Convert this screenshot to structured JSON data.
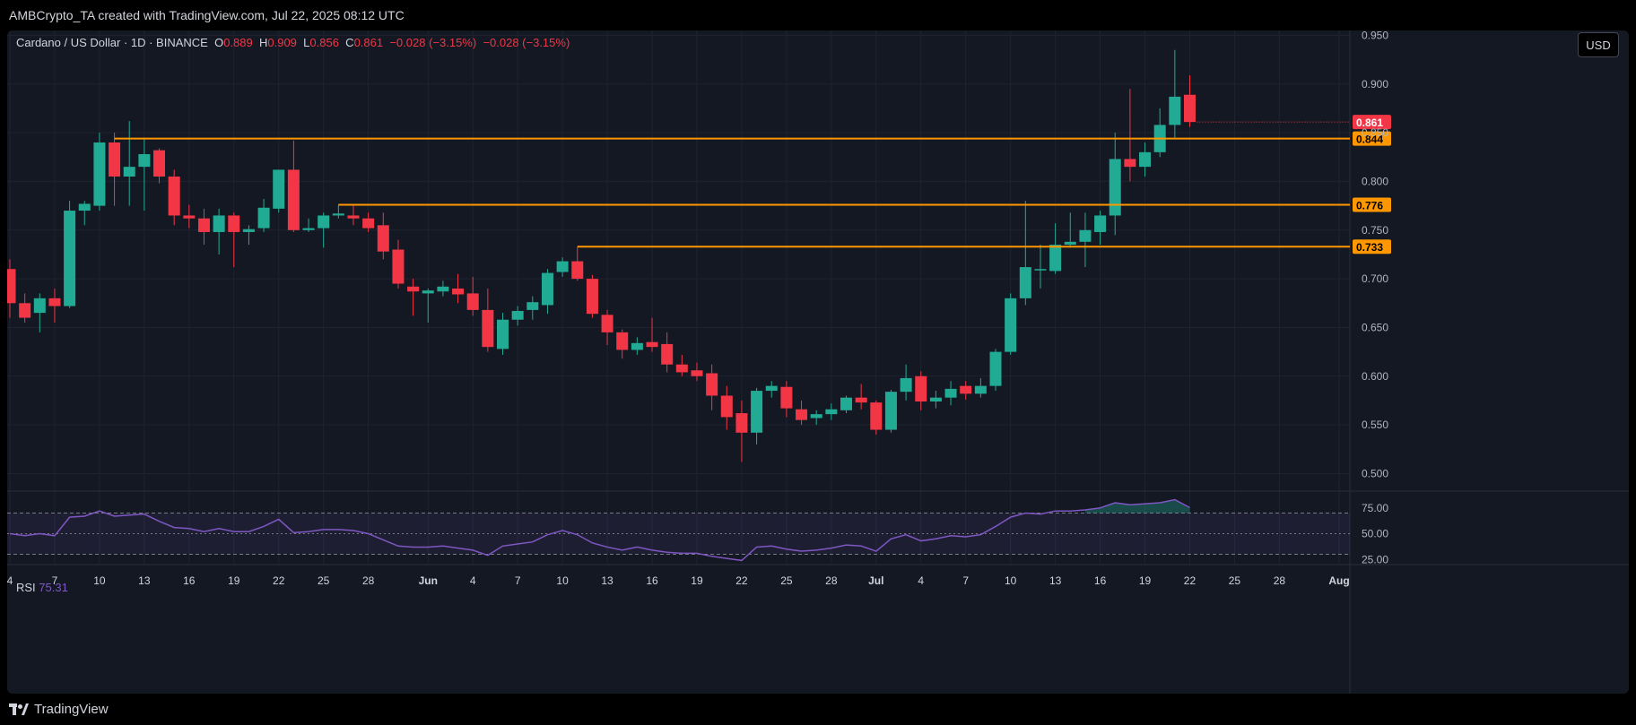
{
  "header": {
    "attribution": "AMBCrypto_TA created with TradingView.com, Jul 22, 2025 08:12 UTC"
  },
  "legend": {
    "symbol": "Cardano / US Dollar · 1D · BINANCE",
    "open_label": "O",
    "open": "0.889",
    "high_label": "H",
    "high": "0.909",
    "low_label": "L",
    "low": "0.856",
    "close_label": "C",
    "close": "0.861",
    "change": "−0.028 (−3.15%)",
    "change2": "−0.028 (−3.15%)"
  },
  "currency_button": "USD",
  "rsi_legend": {
    "label": "RSI",
    "value": "75.31"
  },
  "footer": {
    "brand": "TradingView"
  },
  "colors": {
    "up": "#22ab94",
    "down": "#f23645",
    "level": "#ff9800",
    "rsi": "#7e57c2",
    "background": "#141823"
  },
  "chart_data": {
    "type": "candlestick",
    "price_axis": {
      "range": [
        0.482,
        0.955
      ],
      "ticks": [
        "0.950",
        "0.900",
        "0.850",
        "0.800",
        "0.750",
        "0.700",
        "0.650",
        "0.600",
        "0.550",
        "0.500"
      ]
    },
    "time_axis": {
      "first_day": 4,
      "last_day": 93,
      "ticks": [
        {
          "d": 4,
          "label": "4"
        },
        {
          "d": 7,
          "label": "7"
        },
        {
          "d": 10,
          "label": "10"
        },
        {
          "d": 13,
          "label": "13"
        },
        {
          "d": 16,
          "label": "16"
        },
        {
          "d": 19,
          "label": "19"
        },
        {
          "d": 22,
          "label": "22"
        },
        {
          "d": 25,
          "label": "25"
        },
        {
          "d": 28,
          "label": "28"
        },
        {
          "d": 32,
          "label": "Jun"
        },
        {
          "d": 35,
          "label": "4"
        },
        {
          "d": 38,
          "label": "7"
        },
        {
          "d": 41,
          "label": "10"
        },
        {
          "d": 44,
          "label": "13"
        },
        {
          "d": 47,
          "label": "16"
        },
        {
          "d": 50,
          "label": "19"
        },
        {
          "d": 53,
          "label": "22"
        },
        {
          "d": 56,
          "label": "25"
        },
        {
          "d": 59,
          "label": "28"
        },
        {
          "d": 62,
          "label": "Jul"
        },
        {
          "d": 65,
          "label": "4"
        },
        {
          "d": 68,
          "label": "7"
        },
        {
          "d": 71,
          "label": "10"
        },
        {
          "d": 74,
          "label": "13"
        },
        {
          "d": 77,
          "label": "16"
        },
        {
          "d": 80,
          "label": "19"
        },
        {
          "d": 83,
          "label": "22"
        },
        {
          "d": 86,
          "label": "25"
        },
        {
          "d": 89,
          "label": "28"
        },
        {
          "d": 93,
          "label": "Aug"
        }
      ]
    },
    "last_price_label": "0.861",
    "levels": [
      {
        "value": 0.844,
        "label": "0.844",
        "from_day": 11
      },
      {
        "value": 0.776,
        "label": "0.776",
        "from_day": 26
      },
      {
        "value": 0.733,
        "label": "0.733",
        "from_day": 42
      }
    ],
    "candles": [
      [
        4,
        0.71,
        0.72,
        0.66,
        0.675
      ],
      [
        5,
        0.675,
        0.685,
        0.655,
        0.66
      ],
      [
        6,
        0.665,
        0.685,
        0.645,
        0.68
      ],
      [
        7,
        0.68,
        0.69,
        0.655,
        0.672
      ],
      [
        8,
        0.672,
        0.78,
        0.67,
        0.77
      ],
      [
        9,
        0.77,
        0.78,
        0.755,
        0.777
      ],
      [
        10,
        0.775,
        0.85,
        0.77,
        0.84
      ],
      [
        11,
        0.84,
        0.85,
        0.775,
        0.805
      ],
      [
        12,
        0.805,
        0.862,
        0.775,
        0.815
      ],
      [
        13,
        0.815,
        0.845,
        0.77,
        0.828
      ],
      [
        14,
        0.832,
        0.834,
        0.798,
        0.805
      ],
      [
        15,
        0.805,
        0.812,
        0.755,
        0.765
      ],
      [
        16,
        0.765,
        0.776,
        0.752,
        0.762
      ],
      [
        17,
        0.762,
        0.772,
        0.735,
        0.748
      ],
      [
        18,
        0.748,
        0.772,
        0.725,
        0.765
      ],
      [
        19,
        0.765,
        0.768,
        0.712,
        0.748
      ],
      [
        20,
        0.748,
        0.755,
        0.735,
        0.751
      ],
      [
        21,
        0.752,
        0.782,
        0.748,
        0.773
      ],
      [
        22,
        0.772,
        0.812,
        0.768,
        0.812
      ],
      [
        23,
        0.812,
        0.842,
        0.748,
        0.75
      ],
      [
        24,
        0.75,
        0.762,
        0.748,
        0.752
      ],
      [
        25,
        0.752,
        0.768,
        0.732,
        0.765
      ],
      [
        26,
        0.765,
        0.776,
        0.762,
        0.767
      ],
      [
        27,
        0.765,
        0.776,
        0.755,
        0.762
      ],
      [
        28,
        0.762,
        0.768,
        0.748,
        0.752
      ],
      [
        29,
        0.755,
        0.768,
        0.72,
        0.728
      ],
      [
        30,
        0.73,
        0.74,
        0.69,
        0.695
      ],
      [
        31,
        0.692,
        0.7,
        0.662,
        0.687
      ],
      [
        32,
        0.685,
        0.69,
        0.655,
        0.688
      ],
      [
        33,
        0.687,
        0.698,
        0.682,
        0.692
      ],
      [
        34,
        0.69,
        0.705,
        0.675,
        0.684
      ],
      [
        35,
        0.685,
        0.702,
        0.662,
        0.668
      ],
      [
        36,
        0.668,
        0.69,
        0.625,
        0.63
      ],
      [
        37,
        0.628,
        0.665,
        0.622,
        0.658
      ],
      [
        38,
        0.658,
        0.672,
        0.652,
        0.667
      ],
      [
        39,
        0.668,
        0.682,
        0.658,
        0.676
      ],
      [
        40,
        0.673,
        0.71,
        0.664,
        0.706
      ],
      [
        41,
        0.707,
        0.722,
        0.702,
        0.718
      ],
      [
        42,
        0.718,
        0.733,
        0.698,
        0.7
      ],
      [
        43,
        0.7,
        0.704,
        0.66,
        0.664
      ],
      [
        44,
        0.663,
        0.668,
        0.632,
        0.645
      ],
      [
        45,
        0.645,
        0.648,
        0.618,
        0.627
      ],
      [
        46,
        0.627,
        0.64,
        0.622,
        0.634
      ],
      [
        47,
        0.635,
        0.66,
        0.625,
        0.63
      ],
      [
        48,
        0.633,
        0.645,
        0.604,
        0.612
      ],
      [
        49,
        0.612,
        0.622,
        0.6,
        0.604
      ],
      [
        50,
        0.606,
        0.614,
        0.595,
        0.6
      ],
      [
        51,
        0.603,
        0.612,
        0.565,
        0.58
      ],
      [
        52,
        0.58,
        0.59,
        0.545,
        0.558
      ],
      [
        53,
        0.562,
        0.575,
        0.512,
        0.542
      ],
      [
        54,
        0.542,
        0.588,
        0.53,
        0.585
      ],
      [
        55,
        0.585,
        0.595,
        0.578,
        0.59
      ],
      [
        56,
        0.589,
        0.595,
        0.558,
        0.567
      ],
      [
        57,
        0.566,
        0.575,
        0.55,
        0.555
      ],
      [
        58,
        0.557,
        0.565,
        0.55,
        0.561
      ],
      [
        59,
        0.561,
        0.572,
        0.555,
        0.566
      ],
      [
        60,
        0.565,
        0.58,
        0.562,
        0.578
      ],
      [
        61,
        0.578,
        0.592,
        0.566,
        0.573
      ],
      [
        62,
        0.573,
        0.575,
        0.54,
        0.545
      ],
      [
        63,
        0.545,
        0.586,
        0.542,
        0.584
      ],
      [
        64,
        0.584,
        0.612,
        0.575,
        0.598
      ],
      [
        65,
        0.6,
        0.605,
        0.565,
        0.574
      ],
      [
        66,
        0.574,
        0.585,
        0.567,
        0.578
      ],
      [
        67,
        0.578,
        0.595,
        0.57,
        0.587
      ],
      [
        68,
        0.59,
        0.595,
        0.576,
        0.582
      ],
      [
        69,
        0.582,
        0.598,
        0.578,
        0.59
      ],
      [
        70,
        0.59,
        0.628,
        0.585,
        0.625
      ],
      [
        71,
        0.625,
        0.685,
        0.622,
        0.68
      ],
      [
        72,
        0.68,
        0.78,
        0.673,
        0.712
      ],
      [
        73,
        0.71,
        0.735,
        0.69,
        0.71
      ],
      [
        74,
        0.708,
        0.757,
        0.705,
        0.735
      ],
      [
        75,
        0.735,
        0.768,
        0.732,
        0.738
      ],
      [
        76,
        0.738,
        0.768,
        0.712,
        0.75
      ],
      [
        77,
        0.748,
        0.77,
        0.735,
        0.765
      ],
      [
        78,
        0.765,
        0.85,
        0.745,
        0.823
      ],
      [
        79,
        0.823,
        0.895,
        0.8,
        0.815
      ],
      [
        80,
        0.815,
        0.84,
        0.805,
        0.83
      ],
      [
        81,
        0.83,
        0.875,
        0.825,
        0.858
      ],
      [
        82,
        0.858,
        0.935,
        0.845,
        0.887
      ],
      [
        83,
        0.889,
        0.909,
        0.856,
        0.861
      ]
    ],
    "rsi": {
      "label": "RSI",
      "value": 75.31,
      "range": [
        20,
        80
      ],
      "levels": [
        70,
        50,
        30
      ],
      "axis_ticks": [
        "75.00",
        "50.00",
        "25.00"
      ],
      "points": [
        [
          4,
          50
        ],
        [
          5,
          48
        ],
        [
          6,
          50
        ],
        [
          7,
          48
        ],
        [
          8,
          66
        ],
        [
          9,
          67
        ],
        [
          10,
          72
        ],
        [
          11,
          67
        ],
        [
          12,
          68
        ],
        [
          13,
          69
        ],
        [
          14,
          62
        ],
        [
          15,
          56
        ],
        [
          16,
          55
        ],
        [
          17,
          52
        ],
        [
          18,
          55
        ],
        [
          19,
          52
        ],
        [
          20,
          52
        ],
        [
          21,
          57
        ],
        [
          22,
          64
        ],
        [
          23,
          51
        ],
        [
          24,
          52
        ],
        [
          25,
          54
        ],
        [
          26,
          54
        ],
        [
          27,
          53
        ],
        [
          28,
          50
        ],
        [
          29,
          44
        ],
        [
          30,
          38
        ],
        [
          31,
          37
        ],
        [
          32,
          37
        ],
        [
          33,
          38
        ],
        [
          34,
          36
        ],
        [
          35,
          34
        ],
        [
          36,
          29
        ],
        [
          37,
          38
        ],
        [
          38,
          40
        ],
        [
          39,
          42
        ],
        [
          40,
          49
        ],
        [
          41,
          53
        ],
        [
          42,
          49
        ],
        [
          43,
          41
        ],
        [
          44,
          37
        ],
        [
          45,
          34
        ],
        [
          46,
          37
        ],
        [
          47,
          34
        ],
        [
          48,
          32
        ],
        [
          49,
          31
        ],
        [
          50,
          31
        ],
        [
          51,
          28
        ],
        [
          52,
          26
        ],
        [
          53,
          24
        ],
        [
          54,
          37
        ],
        [
          55,
          38
        ],
        [
          56,
          35
        ],
        [
          57,
          33
        ],
        [
          58,
          34
        ],
        [
          59,
          36
        ],
        [
          60,
          39
        ],
        [
          61,
          38
        ],
        [
          62,
          33
        ],
        [
          63,
          45
        ],
        [
          64,
          49
        ],
        [
          65,
          43
        ],
        [
          66,
          45
        ],
        [
          67,
          48
        ],
        [
          68,
          47
        ],
        [
          69,
          49
        ],
        [
          70,
          57
        ],
        [
          71,
          66
        ],
        [
          72,
          70
        ],
        [
          73,
          69
        ],
        [
          74,
          72
        ],
        [
          75,
          72
        ],
        [
          76,
          73
        ],
        [
          77,
          75
        ],
        [
          78,
          80
        ],
        [
          79,
          78
        ],
        [
          80,
          79
        ],
        [
          81,
          80
        ],
        [
          82,
          83
        ],
        [
          83,
          75.31
        ]
      ]
    }
  }
}
